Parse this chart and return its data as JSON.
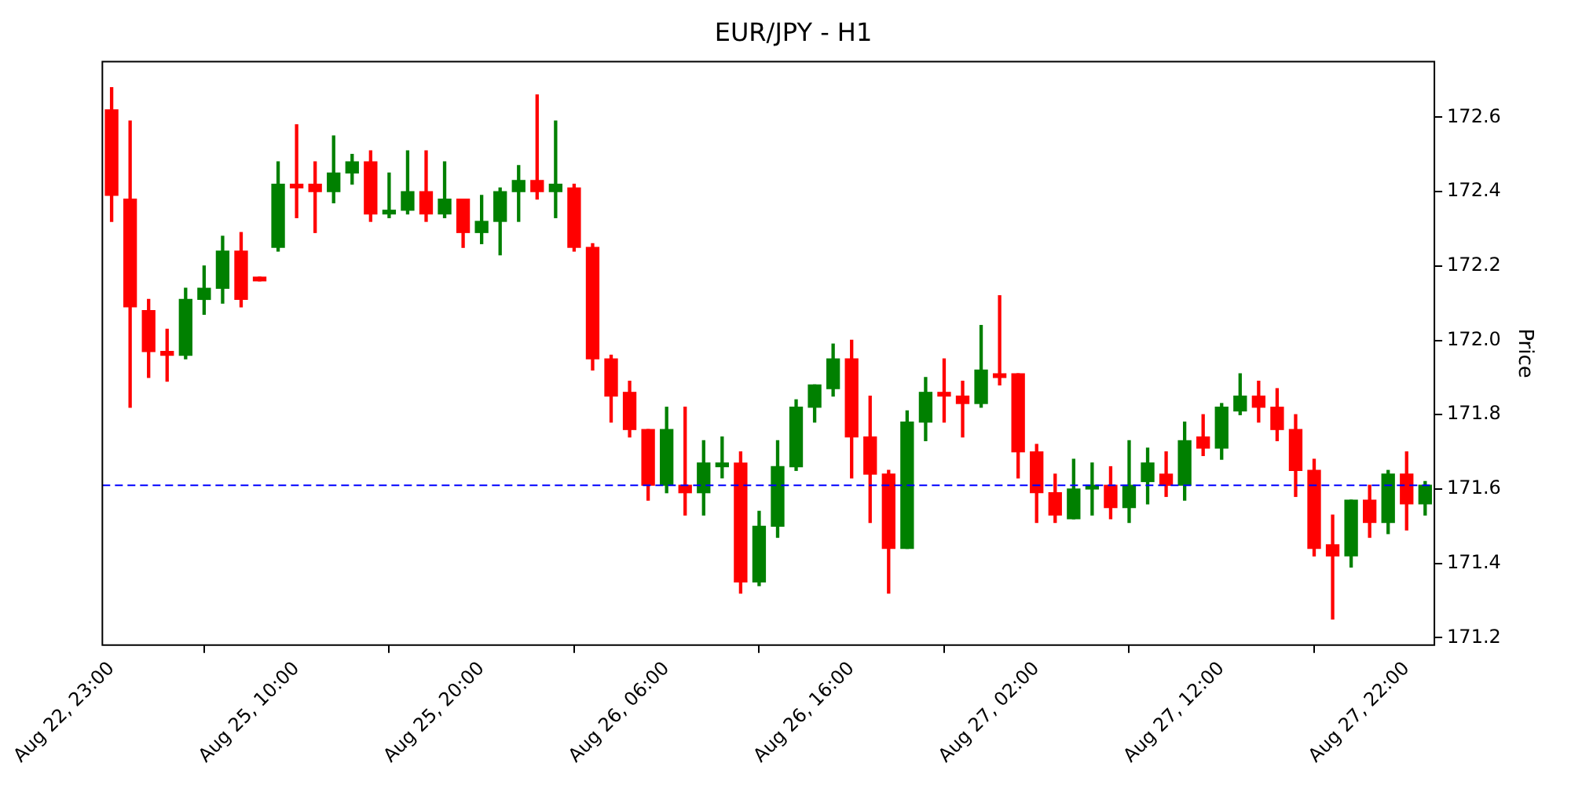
{
  "chart_data": {
    "type": "candlestick",
    "title": "EUR/JPY - H1",
    "ylabel": "Price",
    "categories": [
      "Aug 22, 23:00",
      null,
      null,
      null,
      null,
      null,
      null,
      null,
      null,
      null,
      "Aug 25, 10:00",
      null,
      null,
      null,
      null,
      null,
      null,
      null,
      null,
      null,
      "Aug 25, 20:00",
      null,
      null,
      null,
      null,
      null,
      null,
      null,
      null,
      null,
      "Aug 26, 06:00",
      null,
      null,
      null,
      null,
      null,
      null,
      null,
      null,
      null,
      "Aug 26, 16:00",
      null,
      null,
      null,
      null,
      null,
      null,
      null,
      null,
      null,
      "Aug 27, 02:00",
      null,
      null,
      null,
      null,
      null,
      null,
      null,
      null,
      null,
      "Aug 27, 12:00",
      null,
      null,
      null,
      null,
      null,
      null,
      null,
      null,
      null,
      "Aug 27, 22:00",
      null
    ],
    "ohlc": [
      [
        172.62,
        172.68,
        172.32,
        172.39
      ],
      [
        172.38,
        172.59,
        171.82,
        172.09
      ],
      [
        172.08,
        172.11,
        171.9,
        171.97
      ],
      [
        171.97,
        172.03,
        171.89,
        171.96
      ],
      [
        171.96,
        172.14,
        171.95,
        172.11
      ],
      [
        172.11,
        172.2,
        172.07,
        172.14
      ],
      [
        172.14,
        172.28,
        172.1,
        172.24
      ],
      [
        172.24,
        172.29,
        172.09,
        172.11
      ],
      [
        172.17,
        172.17,
        172.16,
        172.16
      ],
      [
        172.25,
        172.48,
        172.24,
        172.42
      ],
      [
        172.42,
        172.58,
        172.33,
        172.41
      ],
      [
        172.42,
        172.48,
        172.29,
        172.4
      ],
      [
        172.4,
        172.55,
        172.37,
        172.45
      ],
      [
        172.45,
        172.5,
        172.42,
        172.48
      ],
      [
        172.48,
        172.51,
        172.32,
        172.34
      ],
      [
        172.34,
        172.45,
        172.33,
        172.35
      ],
      [
        172.35,
        172.51,
        172.34,
        172.4
      ],
      [
        172.4,
        172.51,
        172.32,
        172.34
      ],
      [
        172.34,
        172.48,
        172.33,
        172.38
      ],
      [
        172.38,
        172.38,
        172.25,
        172.29
      ],
      [
        172.29,
        172.39,
        172.26,
        172.32
      ],
      [
        172.32,
        172.41,
        172.23,
        172.4
      ],
      [
        172.4,
        172.47,
        172.32,
        172.43
      ],
      [
        172.43,
        172.66,
        172.38,
        172.4
      ],
      [
        172.4,
        172.59,
        172.33,
        172.42
      ],
      [
        172.41,
        172.42,
        172.24,
        172.25
      ],
      [
        172.25,
        172.26,
        171.92,
        171.95
      ],
      [
        171.95,
        171.96,
        171.78,
        171.85
      ],
      [
        171.86,
        171.89,
        171.74,
        171.76
      ],
      [
        171.76,
        171.76,
        171.57,
        171.61
      ],
      [
        171.61,
        171.82,
        171.59,
        171.76
      ],
      [
        171.61,
        171.82,
        171.53,
        171.59
      ],
      [
        171.59,
        171.73,
        171.53,
        171.67
      ],
      [
        171.66,
        171.74,
        171.63,
        171.67
      ],
      [
        171.67,
        171.7,
        171.32,
        171.35
      ],
      [
        171.35,
        171.54,
        171.34,
        171.5
      ],
      [
        171.5,
        171.73,
        171.47,
        171.66
      ],
      [
        171.66,
        171.84,
        171.65,
        171.82
      ],
      [
        171.82,
        171.88,
        171.78,
        171.88
      ],
      [
        171.87,
        171.99,
        171.85,
        171.95
      ],
      [
        171.95,
        172.0,
        171.63,
        171.74
      ],
      [
        171.74,
        171.85,
        171.51,
        171.64
      ],
      [
        171.64,
        171.65,
        171.32,
        171.44
      ],
      [
        171.44,
        171.81,
        171.44,
        171.78
      ],
      [
        171.78,
        171.9,
        171.73,
        171.86
      ],
      [
        171.86,
        171.95,
        171.78,
        171.85
      ],
      [
        171.85,
        171.89,
        171.74,
        171.83
      ],
      [
        171.83,
        172.04,
        171.82,
        171.92
      ],
      [
        171.91,
        172.12,
        171.88,
        171.9
      ],
      [
        171.91,
        171.91,
        171.63,
        171.7
      ],
      [
        171.7,
        171.72,
        171.51,
        171.59
      ],
      [
        171.59,
        171.64,
        171.51,
        171.53
      ],
      [
        171.52,
        171.68,
        171.52,
        171.6
      ],
      [
        171.6,
        171.67,
        171.53,
        171.61
      ],
      [
        171.61,
        171.66,
        171.52,
        171.55
      ],
      [
        171.55,
        171.73,
        171.51,
        171.61
      ],
      [
        171.62,
        171.71,
        171.56,
        171.67
      ],
      [
        171.64,
        171.7,
        171.58,
        171.61
      ],
      [
        171.61,
        171.78,
        171.57,
        171.73
      ],
      [
        171.74,
        171.8,
        171.69,
        171.71
      ],
      [
        171.71,
        171.83,
        171.68,
        171.82
      ],
      [
        171.81,
        171.91,
        171.8,
        171.85
      ],
      [
        171.85,
        171.89,
        171.78,
        171.82
      ],
      [
        171.82,
        171.87,
        171.73,
        171.76
      ],
      [
        171.76,
        171.8,
        171.58,
        171.65
      ],
      [
        171.65,
        171.68,
        171.42,
        171.44
      ],
      [
        171.45,
        171.53,
        171.25,
        171.42
      ],
      [
        171.42,
        171.57,
        171.39,
        171.57
      ],
      [
        171.57,
        171.61,
        171.47,
        171.51
      ],
      [
        171.51,
        171.65,
        171.48,
        171.64
      ],
      [
        171.64,
        171.7,
        171.49,
        171.56
      ],
      [
        171.56,
        171.62,
        171.53,
        171.61
      ]
    ],
    "colors": [
      "#ff0000",
      "#ff0000",
      "#ff0000",
      "#ff0000",
      "#008000",
      "#008000",
      "#008000",
      "#ff0000",
      "#ff0000",
      "#008000",
      "#ff0000",
      "#ff0000",
      "#008000",
      "#008000",
      "#ff0000",
      "#008000",
      "#008000",
      "#ff0000",
      "#008000",
      "#ff0000",
      "#008000",
      "#008000",
      "#008000",
      "#ff0000",
      "#008000",
      "#ff0000",
      "#ff0000",
      "#ff0000",
      "#ff0000",
      "#ff0000",
      "#008000",
      "#ff0000",
      "#008000",
      "#008000",
      "#ff0000",
      "#008000",
      "#008000",
      "#008000",
      "#008000",
      "#008000",
      "#ff0000",
      "#ff0000",
      "#ff0000",
      "#008000",
      "#008000",
      "#ff0000",
      "#ff0000",
      "#008000",
      "#ff0000",
      "#ff0000",
      "#ff0000",
      "#ff0000",
      "#008000",
      "#008000",
      "#ff0000",
      "#008000",
      "#008000",
      "#ff0000",
      "#008000",
      "#ff0000",
      "#008000",
      "#008000",
      "#ff0000",
      "#ff0000",
      "#ff0000",
      "#ff0000",
      "#ff0000",
      "#008000",
      "#ff0000",
      "#008000",
      "#ff0000",
      "#008000"
    ],
    "ylim": [
      171.18,
      172.75
    ],
    "yticks": [
      171.2,
      171.4,
      171.6,
      171.8,
      {
        "value": 172,
        "label": "172.0"
      },
      172.2,
      172.4,
      172.6
    ],
    "ref_lines": [
      {
        "axis": "y",
        "value": 171.61,
        "color": "#0000ff",
        "line_style": "dashed"
      }
    ],
    "grid": false,
    "legend": false
  }
}
